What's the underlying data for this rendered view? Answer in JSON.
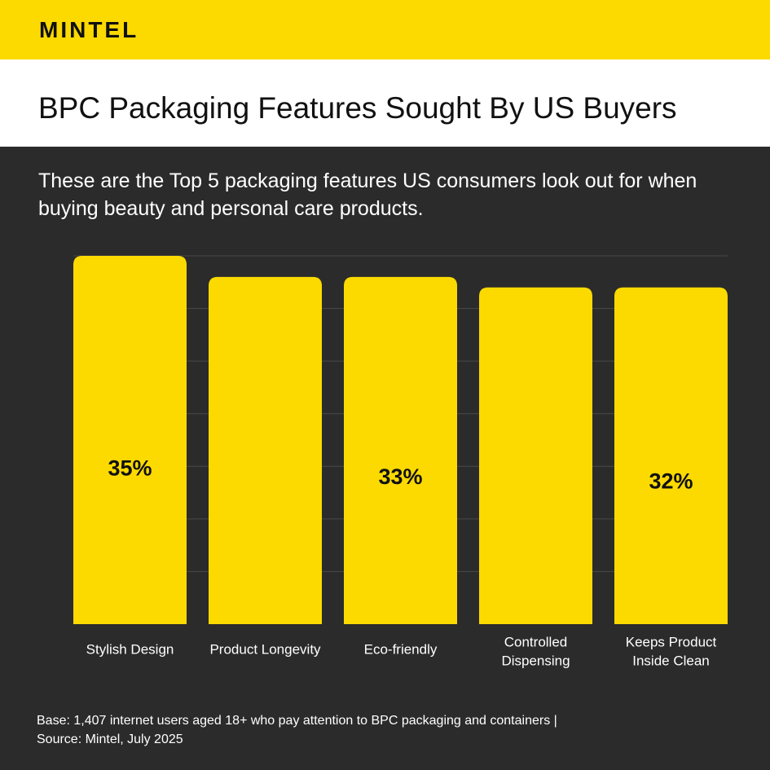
{
  "header": {
    "brand": "MINTEL",
    "title": "BPC Packaging Features Sought By US Buyers",
    "subtitle": "These are the Top 5 packaging features US consumers look out for when buying beauty and personal care products."
  },
  "colors": {
    "brand_yellow": "#fcda00",
    "background": "#2b2b2b",
    "title_band": "#ffffff",
    "bar_label": "#111111",
    "axis_text": "#ffffff",
    "gridline": "#4a4a4a"
  },
  "chart_data": {
    "type": "bar",
    "categories": [
      [
        "Stylish Design"
      ],
      [
        "Product Longevity"
      ],
      [
        "Eco-friendly"
      ],
      [
        "Controlled",
        "Dispensing"
      ],
      [
        "Keeps Product",
        "Inside Clean"
      ]
    ],
    "values": [
      35,
      33,
      33,
      32,
      32
    ],
    "data_labels": [
      "35%",
      "",
      "33%",
      "",
      "32%"
    ],
    "ylim": [
      0,
      35
    ],
    "grid": true,
    "legend": "none"
  },
  "footer": {
    "base_line": "Base: 1,407 internet users aged 18+ who pay attention to BPC packaging and containers |",
    "source_line": "Source: Mintel, July 2025"
  }
}
